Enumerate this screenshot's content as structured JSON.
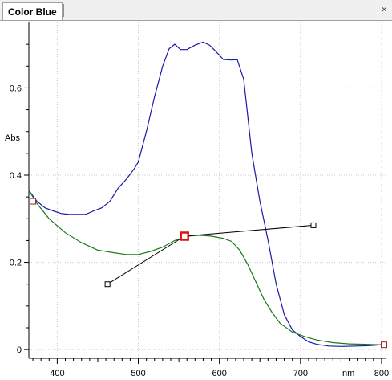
{
  "tab": {
    "title": "Color Blue",
    "close_glyph": "×"
  },
  "colors": {
    "absorbance": "#1a1aa8",
    "fitted": "#1a7a1a",
    "handle_line": "#000000",
    "selected_point": "#e01010",
    "endpoint": "#a02020",
    "grid": "#c8c8c8"
  },
  "chart_data": {
    "type": "line",
    "title": "",
    "xlabel": "nm",
    "ylabel": "Abs",
    "xlim": [
      365,
      805
    ],
    "ylim": [
      -0.02,
      0.75
    ],
    "x_ticks": [
      400,
      500,
      600,
      700,
      800
    ],
    "y_ticks": [
      0,
      0.2,
      0.4,
      0.6
    ],
    "grid": true,
    "series": [
      {
        "color": "#1a1aa8",
        "points": [
          [
            365,
            0.365
          ],
          [
            375,
            0.34
          ],
          [
            385,
            0.325
          ],
          [
            395,
            0.318
          ],
          [
            405,
            0.312
          ],
          [
            415,
            0.31
          ],
          [
            425,
            0.31
          ],
          [
            435,
            0.31
          ],
          [
            445,
            0.318
          ],
          [
            455,
            0.325
          ],
          [
            465,
            0.34
          ],
          [
            475,
            0.37
          ],
          [
            485,
            0.39
          ],
          [
            495,
            0.415
          ],
          [
            500,
            0.43
          ],
          [
            510,
            0.5
          ],
          [
            520,
            0.58
          ],
          [
            530,
            0.65
          ],
          [
            538,
            0.69
          ],
          [
            545,
            0.7
          ],
          [
            552,
            0.688
          ],
          [
            560,
            0.688
          ],
          [
            570,
            0.698
          ],
          [
            580,
            0.705
          ],
          [
            588,
            0.698
          ],
          [
            595,
            0.685
          ],
          [
            605,
            0.665
          ],
          [
            615,
            0.664
          ],
          [
            622,
            0.665
          ],
          [
            630,
            0.62
          ],
          [
            640,
            0.45
          ],
          [
            650,
            0.34
          ],
          [
            660,
            0.25
          ],
          [
            670,
            0.15
          ],
          [
            680,
            0.08
          ],
          [
            690,
            0.045
          ],
          [
            700,
            0.03
          ],
          [
            710,
            0.018
          ],
          [
            720,
            0.012
          ],
          [
            735,
            0.008
          ],
          [
            750,
            0.007
          ],
          [
            770,
            0.008
          ],
          [
            785,
            0.009
          ],
          [
            800,
            0.011
          ]
        ]
      },
      {
        "color": "#1a7a1a",
        "points": [
          [
            365,
            0.365
          ],
          [
            375,
            0.335
          ],
          [
            390,
            0.3
          ],
          [
            410,
            0.268
          ],
          [
            430,
            0.245
          ],
          [
            450,
            0.228
          ],
          [
            470,
            0.222
          ],
          [
            485,
            0.218
          ],
          [
            500,
            0.218
          ],
          [
            515,
            0.225
          ],
          [
            530,
            0.235
          ],
          [
            545,
            0.25
          ],
          [
            560,
            0.26
          ],
          [
            575,
            0.262
          ],
          [
            590,
            0.26
          ],
          [
            605,
            0.255
          ],
          [
            615,
            0.248
          ],
          [
            625,
            0.228
          ],
          [
            635,
            0.195
          ],
          [
            645,
            0.155
          ],
          [
            655,
            0.115
          ],
          [
            665,
            0.085
          ],
          [
            675,
            0.06
          ],
          [
            690,
            0.04
          ],
          [
            705,
            0.03
          ],
          [
            720,
            0.022
          ],
          [
            740,
            0.016
          ],
          [
            760,
            0.013
          ],
          [
            780,
            0.012
          ],
          [
            800,
            0.011
          ]
        ]
      }
    ],
    "control_points": [
      {
        "role": "start",
        "x": 370,
        "y": 0.34
      },
      {
        "role": "handle-in",
        "x": 462,
        "y": 0.15
      },
      {
        "role": "anchor-selected",
        "x": 557,
        "y": 0.26
      },
      {
        "role": "handle-out",
        "x": 716,
        "y": 0.285
      },
      {
        "role": "end",
        "x": 803,
        "y": 0.011
      }
    ]
  }
}
